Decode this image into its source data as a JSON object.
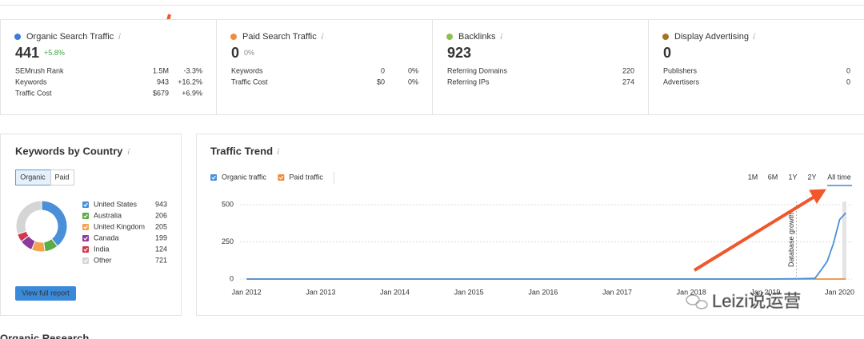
{
  "summary": [
    {
      "title": "Organic Search Traffic",
      "value": "441",
      "change": "+5.8%",
      "color": "#3b7dd8",
      "rows": [
        {
          "label": "SEMrush Rank",
          "value": "1.5M",
          "change": "-3.3%"
        },
        {
          "label": "Keywords",
          "value": "943",
          "change": "+16.2%"
        },
        {
          "label": "Traffic Cost",
          "value": "$679",
          "change": "+6.9%"
        }
      ]
    },
    {
      "title": "Paid Search Traffic",
      "value": "0",
      "change": "0%",
      "color": "#f28c3c",
      "rows": [
        {
          "label": "Keywords",
          "value": "0",
          "change": "0%"
        },
        {
          "label": "Traffic Cost",
          "value": "$0",
          "change": "0%"
        }
      ]
    },
    {
      "title": "Backlinks",
      "value": "923",
      "color": "#8cc152",
      "rows": [
        {
          "label": "Referring Domains",
          "value": "220"
        },
        {
          "label": "Referring IPs",
          "value": "274"
        }
      ]
    },
    {
      "title": "Display Advertising",
      "value": "0",
      "color": "#a8731f",
      "rows": [
        {
          "label": "Publishers",
          "value": "0"
        },
        {
          "label": "Advertisers",
          "value": "0"
        }
      ]
    }
  ],
  "keywords_panel": {
    "tabs": [
      "Organic",
      "Paid"
    ],
    "button": "View full report"
  },
  "trend_panel": {
    "ranges": [
      "1M",
      "6M",
      "1Y",
      "2Y",
      "All time"
    ]
  },
  "next_section": "Organic Research",
  "watermark": "Leizi说运营",
  "chart_data": [
    {
      "type": "pie",
      "title": "Keywords by Country",
      "donut": true,
      "categories": [
        "United States",
        "Australia",
        "United Kingdom",
        "Canada",
        "India",
        "Other"
      ],
      "values": [
        943,
        206,
        205,
        199,
        124,
        721
      ],
      "colors": [
        "#4a90d9",
        "#5aac44",
        "#f4a24b",
        "#8e3a9c",
        "#d0384e",
        "#d5d5d5"
      ]
    },
    {
      "type": "line",
      "title": "Traffic Trend",
      "x": [
        "2012-01",
        "2013-01",
        "2014-01",
        "2015-01",
        "2016-01",
        "2017-01",
        "2018-01",
        "2019-01",
        "2019-06",
        "2019-09",
        "2019-10",
        "2019-11",
        "2019-12",
        "2020-01",
        "2020-02"
      ],
      "series": [
        {
          "name": "Organic traffic",
          "color": "#4a90d9",
          "values": [
            0,
            0,
            0,
            0,
            0,
            0,
            0,
            0,
            2,
            5,
            60,
            120,
            240,
            400,
            445
          ]
        },
        {
          "name": "Paid traffic",
          "color": "#f28c3c",
          "values": [
            0,
            0,
            0,
            0,
            0,
            0,
            0,
            0,
            0,
            0,
            0,
            0,
            0,
            0,
            0
          ]
        }
      ],
      "xlim": [
        "2011-10",
        "2020-03"
      ],
      "xticks": [
        {
          "value": "2012-01",
          "label": "Jan 2012"
        },
        {
          "value": "2013-01",
          "label": "Jan 2013"
        },
        {
          "value": "2014-01",
          "label": "Jan 2014"
        },
        {
          "value": "2015-01",
          "label": "Jan 2015"
        },
        {
          "value": "2016-01",
          "label": "Jan 2016"
        },
        {
          "value": "2017-01",
          "label": "Jan 2017"
        },
        {
          "value": "2018-01",
          "label": "Jan 2018"
        },
        {
          "value": "2019-01",
          "label": "Jan 2019"
        },
        {
          "value": "2020-01",
          "label": "Jan 2020"
        }
      ],
      "ylim": [
        0,
        500
      ],
      "yticks": [
        0,
        250,
        500
      ],
      "grid": true,
      "annotation": {
        "text": "Database growth",
        "x": "2019-06"
      }
    }
  ]
}
